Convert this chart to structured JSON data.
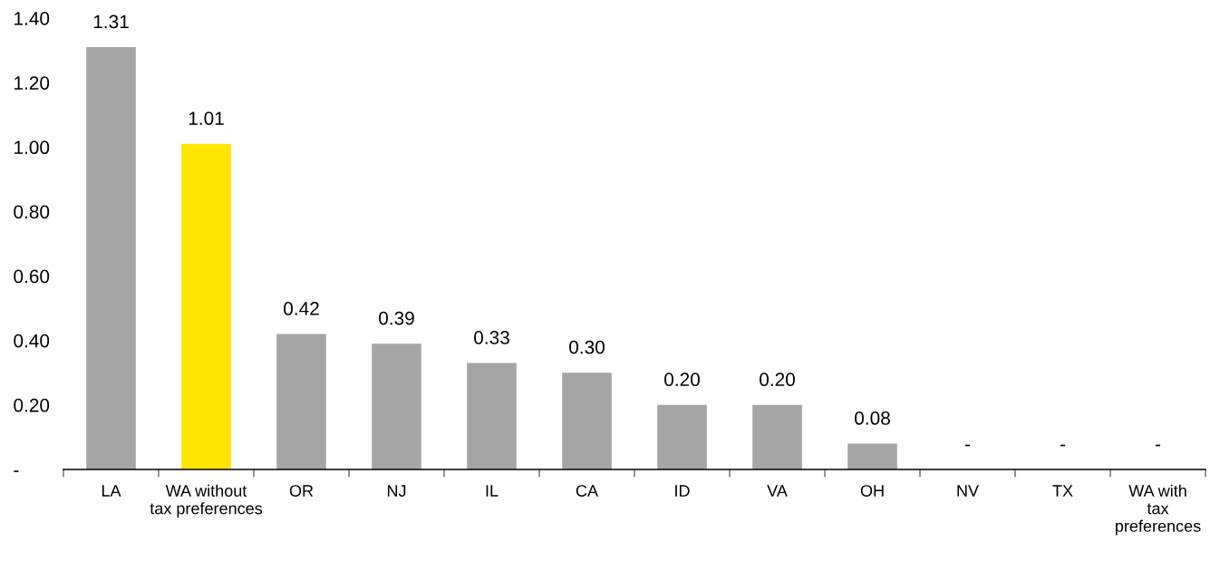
{
  "chart_data": {
    "type": "bar",
    "categories": [
      "LA",
      "WA without\ntax preferences",
      "OR",
      "NJ",
      "IL",
      "CA",
      "ID",
      "VA",
      "OH",
      "NV",
      "TX",
      "WA with\ntax\npreferences"
    ],
    "values": [
      1.31,
      1.01,
      0.42,
      0.39,
      0.33,
      0.3,
      0.2,
      0.2,
      0.08,
      0,
      0,
      0
    ],
    "colors": [
      "#a5a5a5",
      "#ffe600",
      "#a5a5a5",
      "#a5a5a5",
      "#a5a5a5",
      "#a5a5a5",
      "#a5a5a5",
      "#a5a5a5",
      "#a5a5a5",
      "#a5a5a5",
      "#a5a5a5",
      "#a5a5a5"
    ],
    "value_labels": [
      "1.31",
      "1.01",
      "0.42",
      "0.39",
      "0.33",
      "0.30",
      "0.20",
      "0.20",
      "0.08",
      "-",
      "-",
      "-"
    ],
    "ylim": [
      0,
      1.4
    ],
    "yticks": [
      {
        "value": 0,
        "label": "-"
      },
      {
        "value": 0.2,
        "label": "0.20"
      },
      {
        "value": 0.4,
        "label": "0.40"
      },
      {
        "value": 0.6,
        "label": "0.60"
      },
      {
        "value": 0.8,
        "label": "0.80"
      },
      {
        "value": 1.0,
        "label": "1.00"
      },
      {
        "value": 1.2,
        "label": "1.20"
      },
      {
        "value": 1.4,
        "label": "1.40"
      }
    ],
    "grid": false,
    "legend": false
  }
}
